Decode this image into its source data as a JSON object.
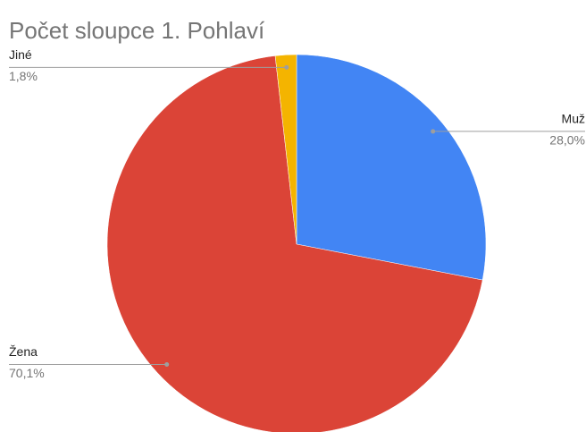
{
  "chart_data": {
    "type": "pie",
    "title": "Počet sloupce 1. Pohlaví",
    "categories": [
      "Muž",
      "Žena",
      "Jiné"
    ],
    "values": [
      28.0,
      70.1,
      1.8
    ],
    "value_labels": [
      "28,0%",
      "70,1%",
      "1,8%"
    ],
    "colors": [
      "#4285f4",
      "#db4437",
      "#f4b400"
    ]
  }
}
